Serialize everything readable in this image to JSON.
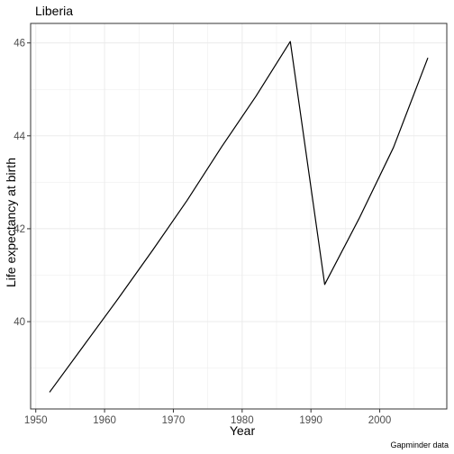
{
  "chart_data": {
    "type": "line",
    "title": "Liberia",
    "xlabel": "Year",
    "ylabel": "Life expectancy at birth",
    "caption": "Gapminder data",
    "x": [
      1952,
      1957,
      1962,
      1967,
      1972,
      1977,
      1982,
      1987,
      1992,
      1997,
      2002,
      2007
    ],
    "series": [
      {
        "values": [
          38.48,
          39.49,
          40.5,
          41.54,
          42.61,
          43.76,
          44.85,
          46.03,
          40.8,
          42.22,
          43.75,
          45.68
        ]
      }
    ],
    "xlim": [
      1949.25,
      2009.75
    ],
    "ylim": [
      38.12,
      46.42
    ],
    "x_ticks": [
      "1950",
      "1960",
      "1970",
      "1980",
      "1990",
      "2000"
    ],
    "y_ticks": [
      "40",
      "42",
      "44",
      "46"
    ],
    "grid": true,
    "line_color": "#000000",
    "grid_color": "#ebebeb",
    "background": "#ffffff"
  }
}
